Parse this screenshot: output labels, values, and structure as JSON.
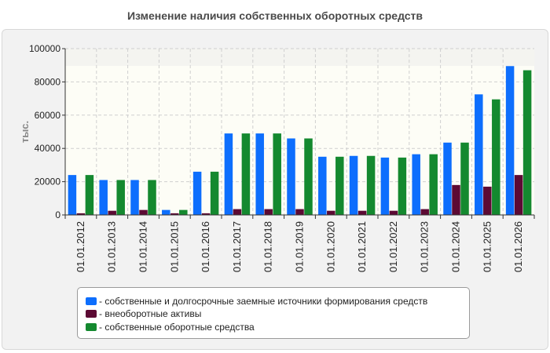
{
  "title": "Изменение наличия собственных оборотных средств",
  "colors": {
    "series1": "#0d6efd",
    "series2": "#5c0a34",
    "series3": "#14892f",
    "grid": "#cfcfcf",
    "text": "#222222"
  },
  "chart_data": {
    "type": "bar",
    "title": "Изменение наличия собственных оборотных средств",
    "xlabel": "",
    "ylabel": "тыс.",
    "ylim": [
      0,
      100000
    ],
    "yticks": [
      0,
      20000,
      40000,
      60000,
      80000,
      100000
    ],
    "ytick_labels": [
      "0",
      "20000",
      "40000",
      "60000",
      "80000",
      "100000"
    ],
    "grid": true,
    "legend_position": "bottom",
    "categories": [
      "01.01.2012",
      "01.01.2013",
      "01.01.2014",
      "01.01.2015",
      "01.01.2016",
      "01.01.2017",
      "01.01.2018",
      "01.01.2019",
      "01.01.2020",
      "01.01.2021",
      "01.01.2022",
      "01.01.2023",
      "01.01.2024",
      "01.01.2025",
      "01.01.2026"
    ],
    "series": [
      {
        "name": "- собственные и долгосрочные заемные источники формирования средств",
        "color": "#0d6efd",
        "values": [
          24000,
          21000,
          21000,
          3000,
          26000,
          49000,
          49000,
          46000,
          35000,
          35500,
          34500,
          36500,
          43500,
          72500,
          89500
        ]
      },
      {
        "name": "- внеоборотные активы",
        "color": "#5c0a34",
        "values": [
          1000,
          2500,
          3000,
          1000,
          1000,
          3500,
          3500,
          3500,
          2500,
          2500,
          2500,
          3500,
          18000,
          17000,
          24000
        ]
      },
      {
        "name": "- собственные оборотные средства",
        "color": "#14892f",
        "values": [
          24000,
          21000,
          21000,
          3000,
          26000,
          49000,
          49000,
          46000,
          35000,
          35500,
          34500,
          36500,
          43500,
          69500,
          87000
        ]
      }
    ]
  }
}
